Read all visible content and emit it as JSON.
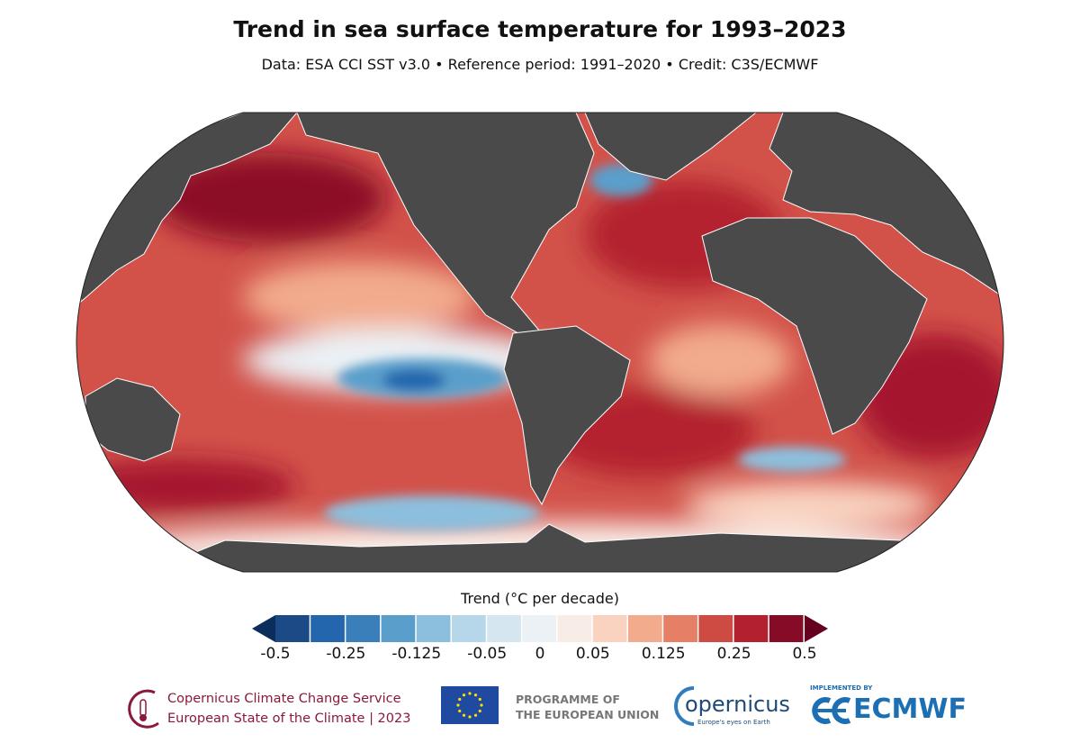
{
  "title": "Trend in sea surface temperature for 1993–2023",
  "subtitle": "Data: ESA CCI SST v3.0 • Reference period: 1991–2020 • Credit: C3S/ECMWF",
  "map": {
    "projection": "Robinson",
    "land_color": "#4a4a4a",
    "coastline_color": "#ffffff"
  },
  "colorbar": {
    "title": "Trend (°C per decade)",
    "ticks": [
      "-0.5",
      "-0.25",
      "-0.125",
      "-0.05",
      "0",
      "0.05",
      "0.125",
      "0.25",
      "0.5"
    ],
    "colors": [
      "#1b4a86",
      "#2466ad",
      "#3a7fb9",
      "#5a9fcb",
      "#8cbfdd",
      "#b6d6ea",
      "#d6e6f1",
      "#ebf1f5",
      "#f8ece6",
      "#f9d3c0",
      "#f2ab8d",
      "#e57f65",
      "#ce4b44",
      "#b3202f",
      "#850b27"
    ],
    "under_color": "#0b2d5c",
    "over_color": "#65001e",
    "extend": "both"
  },
  "footer": {
    "c3s_line1": "Copernicus Climate Change Service",
    "c3s_line2": "European State of the Climate | 2023",
    "eu_line1": "PROGRAMME OF",
    "eu_line2": "THE EUROPEAN UNION",
    "copernicus": "opernicus",
    "copernicus_tag": "Europe's eyes on Earth",
    "ecmwf_small": "IMPLEMENTED BY",
    "ecmwf": "ECMWF"
  }
}
